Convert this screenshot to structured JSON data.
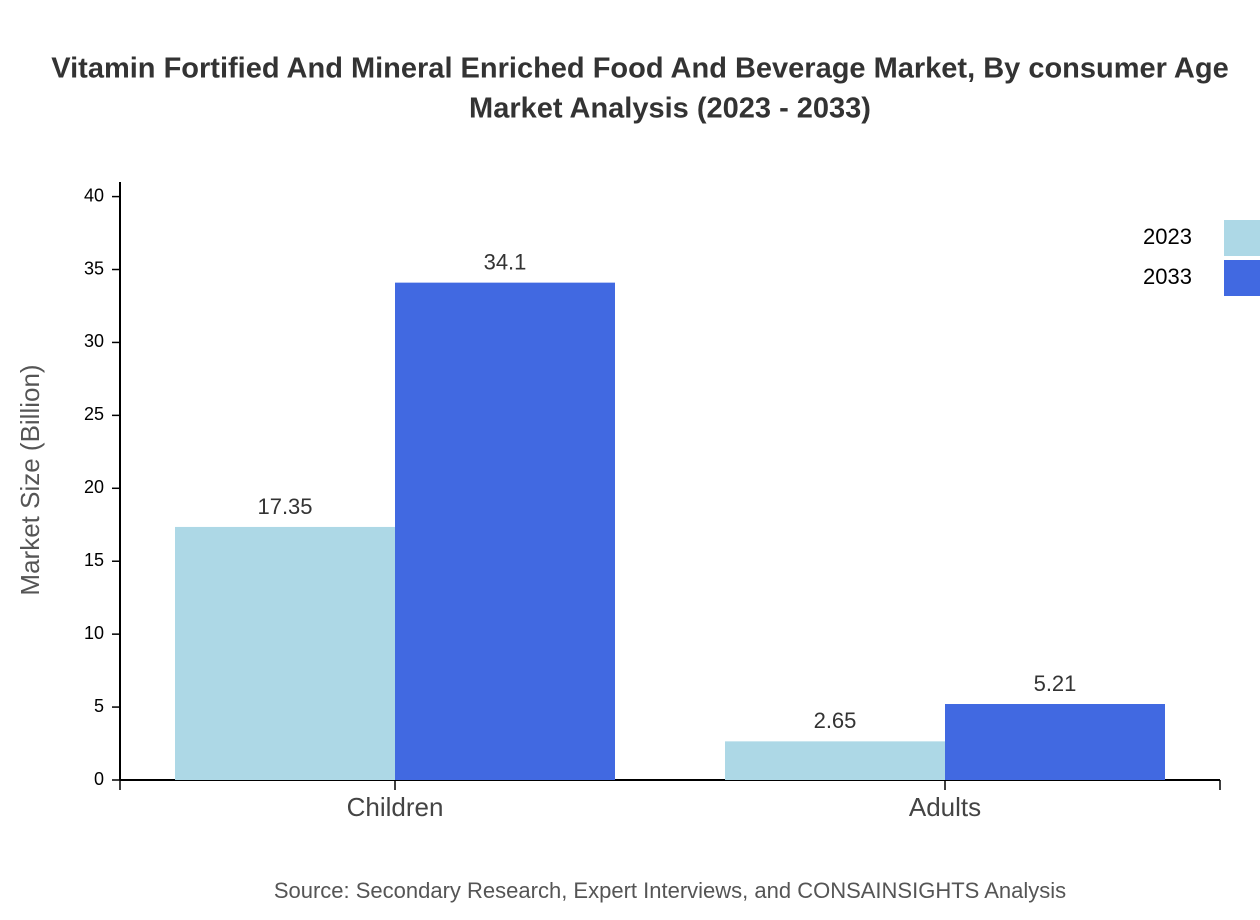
{
  "chart_data": {
    "type": "bar",
    "title": [
      "Vitamin Fortified And Mineral Enriched Food And Beverage Market, By consumer Age",
      "Market Analysis (2023 - 2033)"
    ],
    "y_label": "Market Size (Billion)",
    "source": "Source: Secondary Research, Expert Interviews, and CONSAINSIGHTS Analysis",
    "categories": [
      "Children",
      "Adults"
    ],
    "series": [
      {
        "name": "2023",
        "color": "#add8e6",
        "values": [
          17.35,
          2.65
        ]
      },
      {
        "name": "2033",
        "color": "#4169e1",
        "values": [
          34.1,
          5.21
        ]
      }
    ],
    "ylim": [
      0,
      41
    ],
    "yticks": [
      0,
      5,
      10,
      15,
      20,
      25,
      30,
      35,
      40
    ],
    "legend": "top-right"
  }
}
